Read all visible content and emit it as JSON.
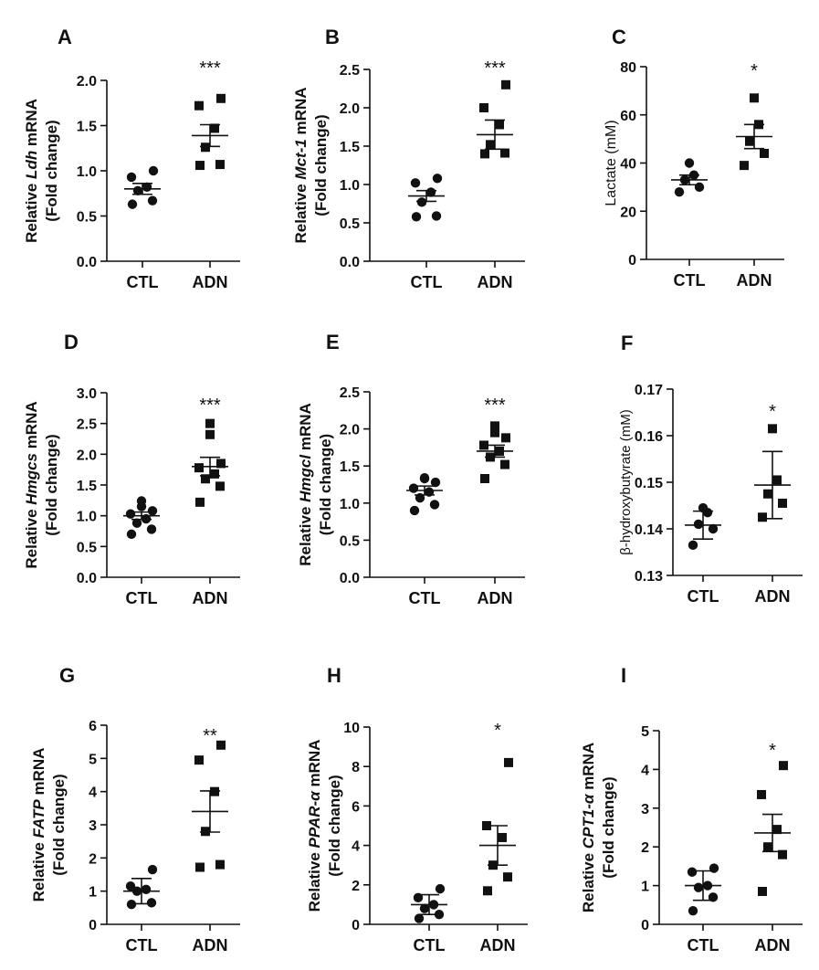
{
  "chart_data": [
    {
      "panel": "A",
      "type": "scatter",
      "categories": [
        "CTL",
        "ADN"
      ],
      "ylabel": {
        "pre": "Relative ",
        "gene": "Ldh",
        "post": " mRNA",
        "line2": "(Fold change)"
      },
      "ylim": [
        0,
        2.0
      ],
      "yticks": [
        "0.0",
        "0.5",
        "1.0",
        "1.5",
        "2.0"
      ],
      "groups": [
        {
          "name": "CTL",
          "marker": "circle",
          "values": [
            0.63,
            0.67,
            0.78,
            0.82,
            0.93,
            1.0
          ],
          "mean": 0.8,
          "err": 0.06
        },
        {
          "name": "ADN",
          "marker": "square",
          "values": [
            1.06,
            1.07,
            1.26,
            1.47,
            1.72,
            1.8
          ],
          "mean": 1.39,
          "err": 0.12
        }
      ],
      "significance": "***"
    },
    {
      "panel": "B",
      "type": "scatter",
      "categories": [
        "CTL",
        "ADN"
      ],
      "ylabel": {
        "pre": "Relative  ",
        "gene": "Mct-1",
        "post": " mRNA",
        "line2": "(Fold change)"
      },
      "ylim": [
        0,
        2.5
      ],
      "yticks": [
        "0.0",
        "0.5",
        "1.0",
        "1.5",
        "2.0",
        "2.5"
      ],
      "groups": [
        {
          "name": "CTL",
          "marker": "circle",
          "values": [
            0.58,
            0.59,
            0.77,
            0.9,
            1.02,
            1.08
          ],
          "mean": 0.85,
          "err": 0.07
        },
        {
          "name": "ADN",
          "marker": "square",
          "values": [
            1.4,
            1.41,
            1.52,
            1.78,
            2.0,
            2.3
          ],
          "mean": 1.65,
          "err": 0.19
        }
      ],
      "significance": "***"
    },
    {
      "panel": "C",
      "type": "scatter",
      "categories": [
        "CTL",
        "ADN"
      ],
      "ylabel": {
        "pre": "Lactate (mM)",
        "gene": "",
        "post": "",
        "line2": ""
      },
      "ylim": [
        0,
        80
      ],
      "yticks": [
        "0",
        "20",
        "40",
        "60",
        "80"
      ],
      "groups": [
        {
          "name": "CTL",
          "marker": "circle",
          "values": [
            28,
            30,
            33,
            35,
            40
          ],
          "mean": 33,
          "err": 2
        },
        {
          "name": "ADN",
          "marker": "square",
          "values": [
            39,
            44,
            49,
            56,
            67
          ],
          "mean": 51,
          "err": 5
        }
      ],
      "significance": "*"
    },
    {
      "panel": "D",
      "type": "scatter",
      "categories": [
        "CTL",
        "ADN"
      ],
      "ylabel": {
        "pre": "Relative ",
        "gene": "Hmgcs",
        "post": " mRNA",
        "line2": "(Fold change)"
      },
      "ylim": [
        0,
        3.0
      ],
      "yticks": [
        "0.0",
        "0.5",
        "1.0",
        "1.5",
        "2.0",
        "2.5",
        "3.0"
      ],
      "groups": [
        {
          "name": "CTL",
          "marker": "circle",
          "values": [
            0.7,
            0.78,
            0.88,
            0.95,
            1.03,
            1.08,
            1.15,
            1.24
          ],
          "mean": 1.0,
          "err": 0.06
        },
        {
          "name": "ADN",
          "marker": "square",
          "values": [
            1.22,
            1.48,
            1.6,
            1.68,
            1.78,
            1.85,
            2.32,
            2.5
          ],
          "mean": 1.8,
          "err": 0.15
        }
      ],
      "significance": "***"
    },
    {
      "panel": "E",
      "type": "scatter",
      "categories": [
        "CTL",
        "ADN"
      ],
      "ylabel": {
        "pre": "Relative ",
        "gene": "Hmgcl",
        "post": " mRNA",
        "line2": "(Fold change)"
      },
      "ylim": [
        0,
        2.5
      ],
      "yticks": [
        "0.0",
        "0.5",
        "1.0",
        "1.5",
        "2.0",
        "2.5"
      ],
      "groups": [
        {
          "name": "CTL",
          "marker": "circle",
          "values": [
            0.9,
            0.98,
            1.07,
            1.15,
            1.2,
            1.28,
            1.33,
            1.34
          ],
          "mean": 1.17,
          "err": 0.06
        },
        {
          "name": "ADN",
          "marker": "square",
          "values": [
            1.33,
            1.52,
            1.62,
            1.7,
            1.78,
            1.88,
            1.95,
            2.04
          ],
          "mean": 1.7,
          "err": 0.08
        }
      ],
      "significance": "***"
    },
    {
      "panel": "F",
      "type": "scatter",
      "categories": [
        "CTL",
        "ADN"
      ],
      "ylabel": {
        "pre": "β-hydroxybutyrate (mM)",
        "gene": "",
        "post": "",
        "line2": ""
      },
      "ylim": [
        0.13,
        0.17
      ],
      "yticks": [
        "0.13",
        "0.14",
        "0.15",
        "0.16",
        "0.17"
      ],
      "groups": [
        {
          "name": "CTL",
          "marker": "circle",
          "values": [
            0.1365,
            0.14,
            0.141,
            0.1435,
            0.1445
          ],
          "mean": 0.1408,
          "err": 0.003
        },
        {
          "name": "ADN",
          "marker": "square",
          "values": [
            0.1425,
            0.1455,
            0.1475,
            0.1505,
            0.1615
          ],
          "mean": 0.1494,
          "err": 0.0072
        }
      ],
      "significance": "*"
    },
    {
      "panel": "G",
      "type": "scatter",
      "categories": [
        "CTL",
        "ADN"
      ],
      "ylabel": {
        "pre": "Relative ",
        "gene": "FATP",
        "post": " mRNA",
        "line2": "(Fold change)"
      },
      "ylim": [
        0,
        6
      ],
      "yticks": [
        "0",
        "1",
        "2",
        "3",
        "4",
        "5",
        "6"
      ],
      "groups": [
        {
          "name": "CTL",
          "marker": "circle",
          "values": [
            0.6,
            0.65,
            1.0,
            1.05,
            1.15,
            1.65
          ],
          "mean": 1.0,
          "err": 0.38
        },
        {
          "name": "ADN",
          "marker": "square",
          "values": [
            1.72,
            1.8,
            2.8,
            4.0,
            4.95,
            5.4
          ],
          "mean": 3.4,
          "err": 0.62
        }
      ],
      "significance": "**"
    },
    {
      "panel": "H",
      "type": "scatter",
      "categories": [
        "CTL",
        "ADN"
      ],
      "ylabel": {
        "pre": "Relative ",
        "gene": "PPAR-α",
        "post": " mRNA",
        "line2": "(Fold change)"
      },
      "ylim": [
        0,
        10
      ],
      "yticks": [
        "0",
        "2",
        "4",
        "6",
        "8",
        "10"
      ],
      "groups": [
        {
          "name": "CTL",
          "marker": "circle",
          "values": [
            0.3,
            0.5,
            0.8,
            1.0,
            1.35,
            1.8
          ],
          "mean": 1.0,
          "err": 0.5
        },
        {
          "name": "ADN",
          "marker": "square",
          "values": [
            1.7,
            2.4,
            3.0,
            4.4,
            5.0,
            8.2
          ],
          "mean": 4.0,
          "err": 1.0
        }
      ],
      "significance": "*"
    },
    {
      "panel": "I",
      "type": "scatter",
      "categories": [
        "CTL",
        "ADN"
      ],
      "ylabel": {
        "pre": "Relative ",
        "gene": "CPT1-α",
        "post": " mRNA",
        "line2": "(Fold change)"
      },
      "ylim": [
        0,
        5
      ],
      "yticks": [
        "0",
        "1",
        "2",
        "3",
        "4",
        "5"
      ],
      "groups": [
        {
          "name": "CTL",
          "marker": "circle",
          "values": [
            0.35,
            0.7,
            0.95,
            1.0,
            1.35,
            1.45
          ],
          "mean": 1.0,
          "err": 0.38
        },
        {
          "name": "ADN",
          "marker": "square",
          "values": [
            0.85,
            1.8,
            2.0,
            2.45,
            3.35,
            4.1
          ],
          "mean": 2.36,
          "err": 0.48
        }
      ],
      "significance": "*"
    }
  ]
}
